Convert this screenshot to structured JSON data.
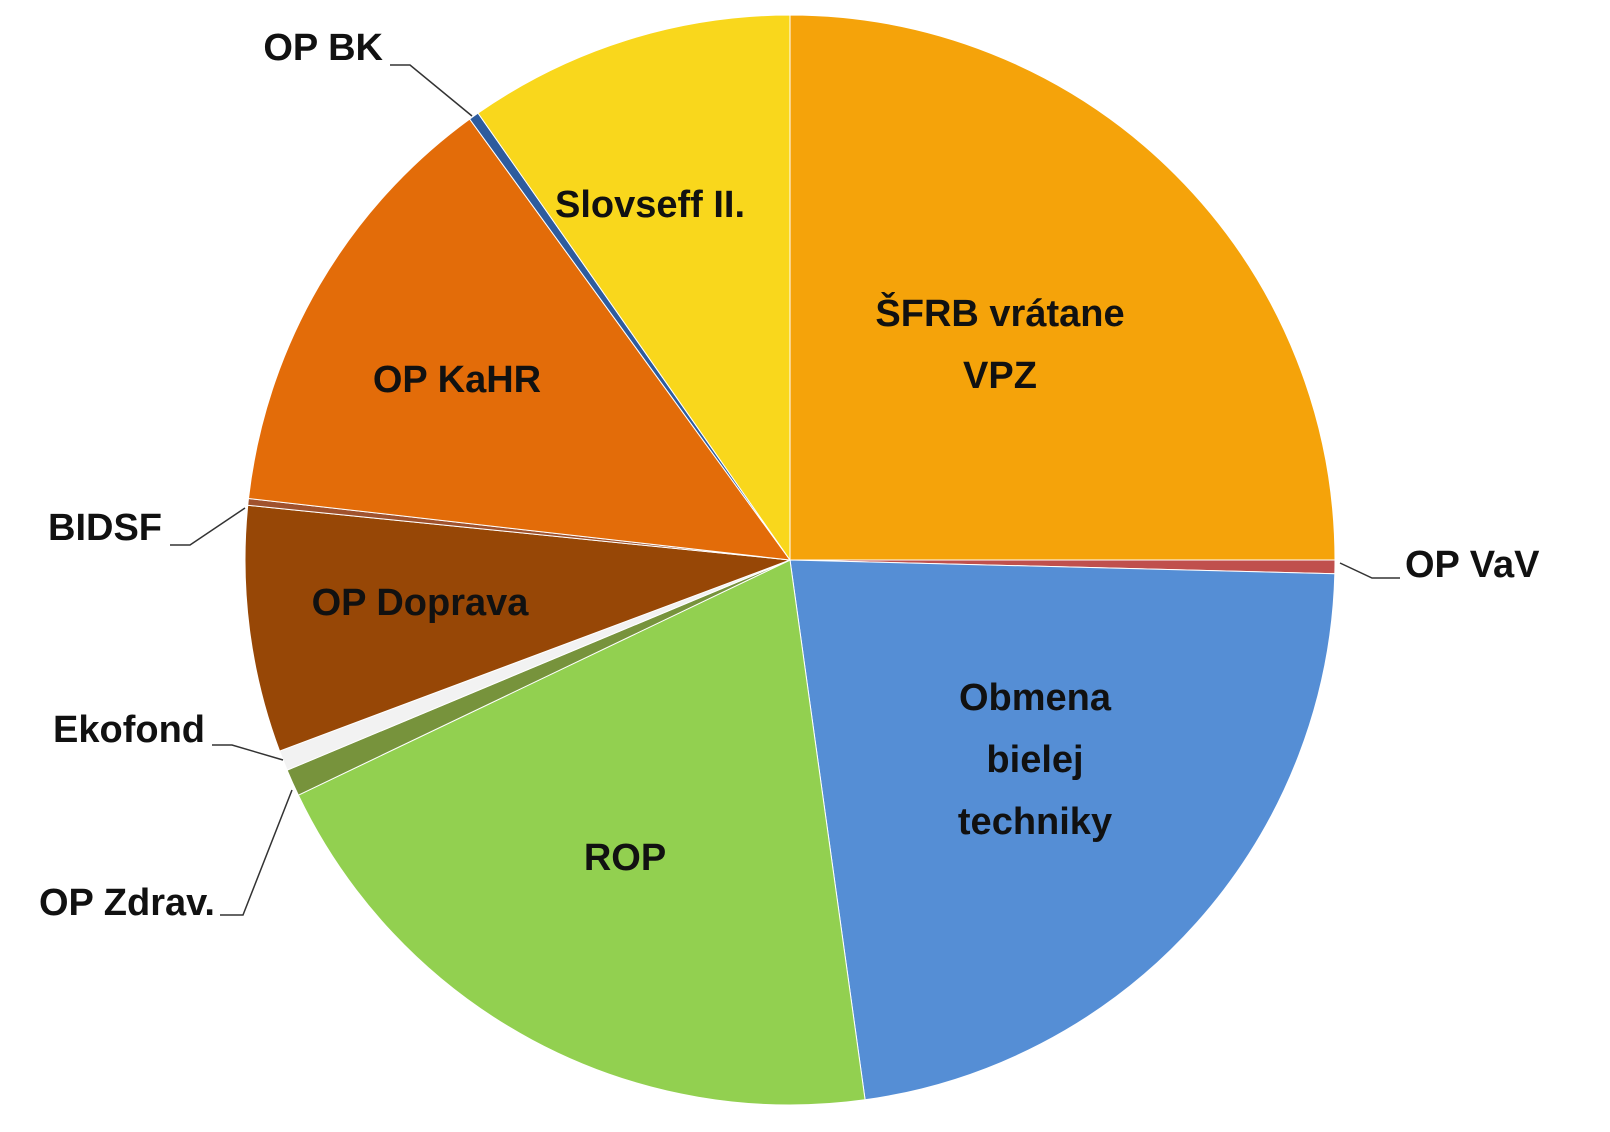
{
  "chart_data": {
    "type": "pie",
    "categories": [
      "ŠFRB vrátane VPZ",
      "OP VaV",
      "Obmena bielej techniky",
      "ROP",
      "OP Zdrav.",
      "Ekofond",
      "OP Doprava",
      "BIDSF",
      "OP KaHR",
      "OP BK",
      "Slovseff II."
    ],
    "values": [
      25.0,
      0.4,
      22.4,
      20.1,
      0.8,
      0.6,
      7.3,
      0.2,
      13.2,
      0.3,
      9.7
    ],
    "colors": [
      "#F5A30A",
      "#C0504D",
      "#558ED5",
      "#92D050",
      "#77933C",
      "#F2F2F2",
      "#974706",
      "#A0522D",
      "#E36C09",
      "#2E5C9E",
      "#F9D71C"
    ]
  }
}
